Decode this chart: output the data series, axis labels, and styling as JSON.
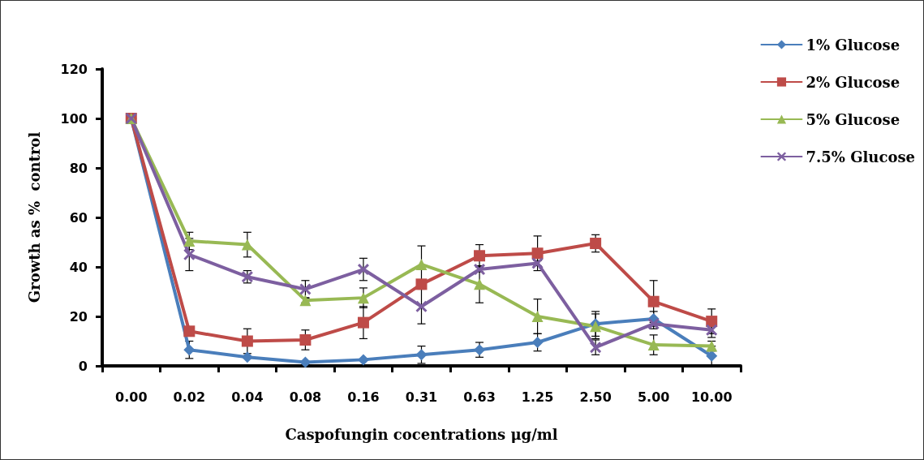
{
  "chart_data": {
    "type": "line",
    "xlabel": "Caspofungin cocentrations μg/ml",
    "ylabel": "Growth as %  control",
    "categories": [
      "0.00",
      "0.02",
      "0.04",
      "0.08",
      "0.16",
      "0.31",
      "0.63",
      "1.25",
      "2.50",
      "5.00",
      "10.00"
    ],
    "ylim": [
      0,
      120
    ],
    "yticks": [
      0,
      20,
      40,
      60,
      80,
      100,
      120
    ],
    "grid": false,
    "legend": "top right",
    "series": [
      {
        "name": "1% Glucose",
        "color": "#4a7ebb",
        "marker": "diamond",
        "values": [
          100,
          6.5,
          3.5,
          1.5,
          2.5,
          4.5,
          6.5,
          9.5,
          17,
          19,
          4
        ],
        "errors": [
          null,
          3.5,
          null,
          null,
          null,
          3.5,
          3,
          3.5,
          5,
          3,
          4
        ]
      },
      {
        "name": "2% Glucose",
        "color": "#be4b48",
        "marker": "square",
        "values": [
          100,
          14,
          10,
          10.5,
          17.5,
          33,
          44.5,
          45.5,
          49.5,
          26,
          18
        ],
        "errors": [
          null,
          null,
          5,
          4,
          6.5,
          null,
          4.5,
          7,
          3.5,
          8.5,
          5
        ]
      },
      {
        "name": "5% Glucose",
        "color": "#98b954",
        "marker": "triangle",
        "values": [
          100,
          50.5,
          49,
          26.5,
          27.5,
          41,
          33,
          20,
          16,
          8.5,
          8
        ],
        "errors": [
          null,
          3.5,
          5,
          1,
          4,
          7.5,
          7.5,
          7,
          5,
          4,
          2
        ]
      },
      {
        "name": "7.5% Glucose",
        "color": "#7d5fa0",
        "marker": "cross",
        "values": [
          100,
          45,
          36,
          31,
          39,
          24,
          39,
          41.5,
          7.5,
          17,
          14.5
        ],
        "errors": [
          null,
          6.5,
          2.5,
          3.5,
          4.5,
          7,
          1,
          1,
          3,
          2,
          3
        ]
      }
    ]
  }
}
